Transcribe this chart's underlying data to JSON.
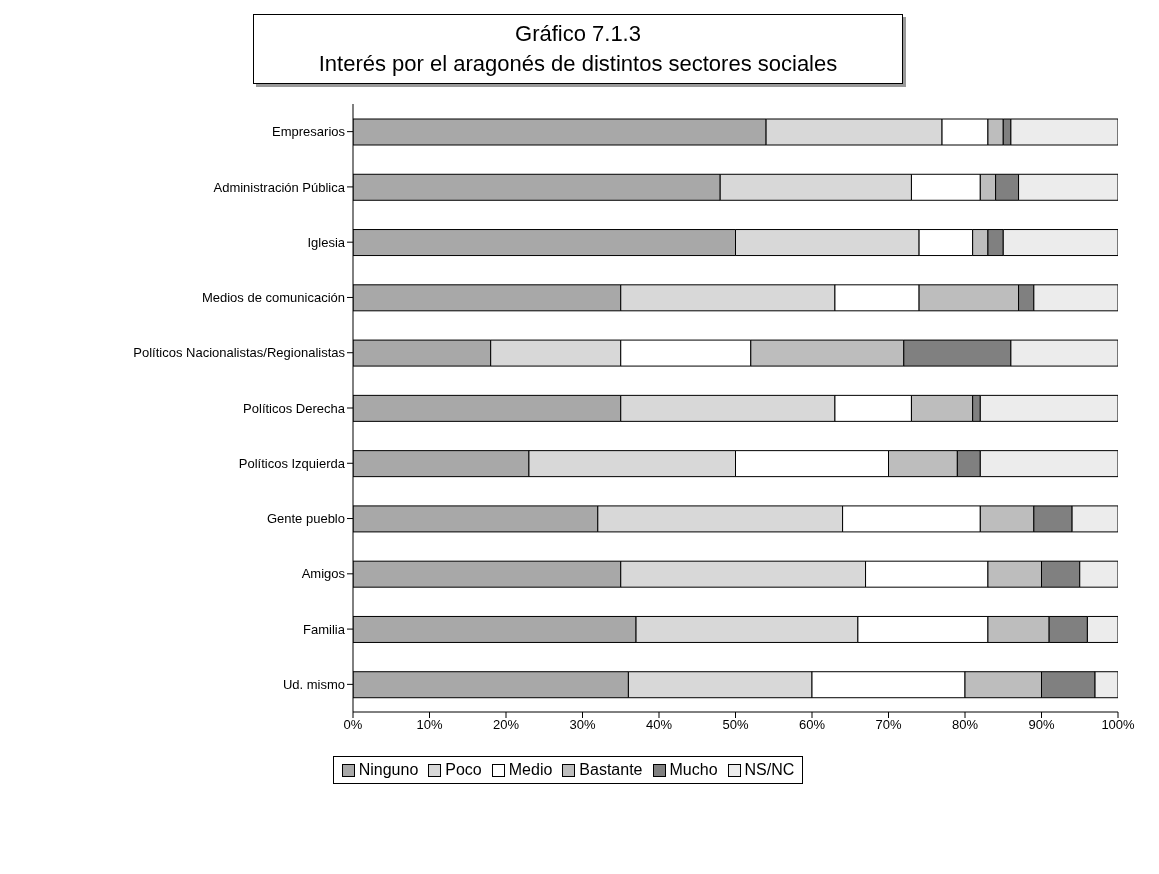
{
  "chart_data": {
    "type": "bar",
    "orientation": "horizontal",
    "stacked": true,
    "title": "Gráfico 7.1.3",
    "subtitle": "Interés por el aragonés de distintos sectores sociales",
    "categories": [
      "Empresarios",
      "Administración Pública",
      "Iglesia",
      "Medios de comunicación",
      "Políticos Nacionalistas/Regionalistas",
      "Políticos Derecha",
      "Políticos Izquierda",
      "Gente pueblo",
      "Amigos",
      "Familia",
      "Ud. mismo"
    ],
    "series": [
      {
        "name": "Ninguno",
        "color": "#a8a8a8",
        "values": [
          54,
          48,
          50,
          35,
          18,
          35,
          23,
          32,
          35,
          37,
          36
        ]
      },
      {
        "name": "Poco",
        "color": "#d8d8d8",
        "values": [
          23,
          25,
          24,
          28,
          17,
          28,
          27,
          32,
          32,
          29,
          24
        ]
      },
      {
        "name": "Medio",
        "color": "#ffffff",
        "values": [
          6,
          9,
          7,
          11,
          17,
          10,
          20,
          18,
          16,
          17,
          20
        ]
      },
      {
        "name": "Bastante",
        "color": "#bdbdbd",
        "values": [
          2,
          2,
          2,
          13,
          20,
          8,
          9,
          7,
          7,
          8,
          10
        ]
      },
      {
        "name": "Mucho",
        "color": "#808080",
        "values": [
          1,
          3,
          2,
          2,
          14,
          1,
          3,
          5,
          5,
          5,
          7
        ]
      },
      {
        "name": "NS/NC",
        "color": "#ececec",
        "values": [
          14,
          13,
          15,
          11,
          14,
          18,
          18,
          6,
          5,
          4,
          3
        ]
      }
    ],
    "xlim": [
      0,
      100
    ],
    "xticks": [
      {
        "value": 0,
        "label": "0%"
      },
      {
        "value": 10,
        "label": "10%"
      },
      {
        "value": 20,
        "label": "20%"
      },
      {
        "value": 30,
        "label": "30%"
      },
      {
        "value": 40,
        "label": "40%"
      },
      {
        "value": 50,
        "label": "50%"
      },
      {
        "value": 60,
        "label": "60%"
      },
      {
        "value": 70,
        "label": "70%"
      },
      {
        "value": 80,
        "label": "80%"
      },
      {
        "value": 90,
        "label": "90%"
      },
      {
        "value": 100,
        "label": "100%"
      }
    ],
    "grid": false,
    "legend": "bottom"
  }
}
